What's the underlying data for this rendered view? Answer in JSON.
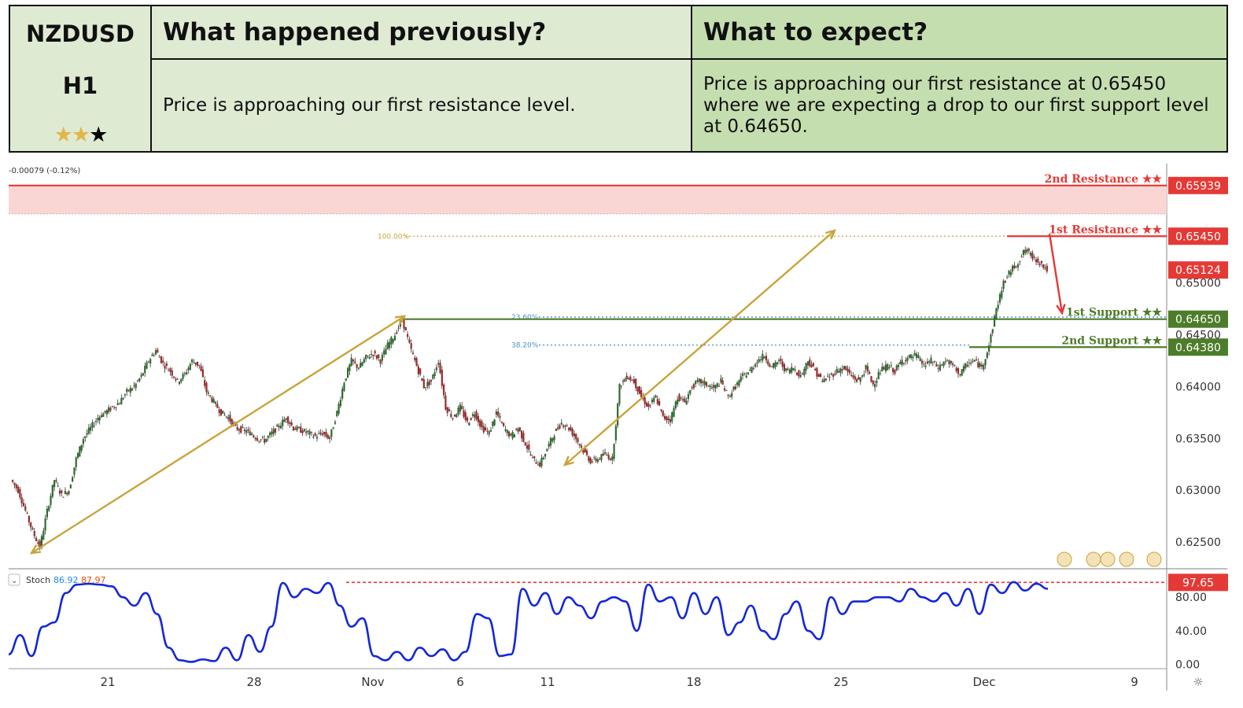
{
  "header": {
    "symbol": "NZDUSD",
    "timeframe": "H1",
    "rating": {
      "gold_stars": 2,
      "black_stars": 1
    },
    "prev_title": "What happened previously?",
    "prev_text": "Price is approaching our first resistance level.",
    "expect_title": "What to expect?",
    "expect_text": "Price is approaching our first resistance at 0.65450 where we are expecting a drop to our first support level at 0.64650."
  },
  "colors": {
    "resistance": "#e53935",
    "support": "#4d7c2a",
    "arrow": "#c9a43a",
    "stoch": "#1428d6",
    "bull": "#2e6b2e",
    "bear": "#9b2a2a"
  },
  "chart_data": [
    {
      "type": "line",
      "name": "price",
      "change_label": "-0.00079 (-0.12%)",
      "x_ticks": [
        "21",
        "28",
        "Nov",
        "6",
        "11",
        "18",
        "25",
        "Dec",
        "9"
      ],
      "y_ticks": [
        "0.62500",
        "0.63000",
        "0.63500",
        "0.64000",
        "0.64500",
        "0.65000"
      ],
      "y_range": [
        0.6225,
        0.6615
      ],
      "last_price": "0.65124",
      "levels": [
        {
          "label": "2nd Resistance ★★",
          "value": 0.65939,
          "tag": "0.65939",
          "kind": "resistance"
        },
        {
          "label": "1st Resistance ★★",
          "value": 0.6545,
          "tag": "0.65450",
          "kind": "resistance"
        },
        {
          "label": "1st Support ★★",
          "value": 0.6465,
          "tag": "0.64650",
          "kind": "support"
        },
        {
          "label": "2nd Support ★★",
          "value": 0.6438,
          "tag": "0.64380",
          "kind": "support"
        }
      ],
      "fib_labels": [
        "100.00%",
        "23.60%",
        "38.20%"
      ],
      "fib_values": [
        0.6545,
        0.6467,
        0.644
      ],
      "resistance_zone": [
        0.65665,
        0.65939
      ],
      "series": [
        {
          "values": [
            0.631,
            0.63,
            0.628,
            0.626,
            0.6245,
            0.628,
            0.631,
            0.6295,
            0.63,
            0.633,
            0.635,
            0.636,
            0.637,
            0.6375,
            0.638,
            0.6385,
            0.6395,
            0.64,
            0.641,
            0.6425,
            0.6435,
            0.6422,
            0.6415,
            0.6405,
            0.6412,
            0.6425,
            0.642,
            0.6395,
            0.6385,
            0.6375,
            0.637,
            0.636,
            0.6358,
            0.6355,
            0.635,
            0.6348,
            0.6355,
            0.6362,
            0.637,
            0.636,
            0.6358,
            0.6355,
            0.6352,
            0.6355,
            0.635,
            0.6375,
            0.6405,
            0.6425,
            0.6418,
            0.6428,
            0.6432,
            0.6425,
            0.644,
            0.645,
            0.6465,
            0.644,
            0.642,
            0.64,
            0.6405,
            0.6425,
            0.638,
            0.637,
            0.638,
            0.6365,
            0.6375,
            0.636,
            0.6355,
            0.6375,
            0.636,
            0.6352,
            0.636,
            0.6345,
            0.633,
            0.6325,
            0.634,
            0.6355,
            0.6365,
            0.636,
            0.635,
            0.6338,
            0.6328,
            0.633,
            0.6335,
            0.633,
            0.64,
            0.641,
            0.6405,
            0.639,
            0.638,
            0.639,
            0.637,
            0.6368,
            0.639,
            0.6385,
            0.64,
            0.6405,
            0.6402,
            0.6398,
            0.6405,
            0.639,
            0.64,
            0.641,
            0.6415,
            0.6425,
            0.643,
            0.6418,
            0.6425,
            0.6415,
            0.6418,
            0.641,
            0.6425,
            0.6415,
            0.6405,
            0.641,
            0.6415,
            0.6418,
            0.641,
            0.6405,
            0.6418,
            0.6402,
            0.6415,
            0.642,
            0.6415,
            0.6425,
            0.6428,
            0.643,
            0.642,
            0.6425,
            0.6418,
            0.6425,
            0.642,
            0.6412,
            0.6422,
            0.6425,
            0.6418,
            0.644,
            0.6475,
            0.65,
            0.6512,
            0.652,
            0.6532,
            0.6525,
            0.652,
            0.6512
          ]
        }
      ]
    },
    {
      "type": "line",
      "name": "Stoch",
      "legend": {
        "label": "Stoch",
        "k": "86.92",
        "d": "87.97"
      },
      "y_ticks": [
        "0.00",
        "40.00",
        "80.00"
      ],
      "y_range": [
        -5,
        112
      ],
      "overbought_level": 97.65,
      "overbought_tag": "97.65",
      "series": [
        {
          "name": "%K",
          "values": [
            12,
            35,
            10,
            45,
            50,
            85,
            95,
            96,
            95,
            93,
            80,
            70,
            85,
            60,
            20,
            5,
            3,
            6,
            4,
            20,
            5,
            35,
            15,
            45,
            97,
            80,
            90,
            85,
            97,
            70,
            45,
            55,
            10,
            5,
            15,
            5,
            20,
            10,
            18,
            5,
            15,
            60,
            55,
            10,
            12,
            90,
            70,
            85,
            60,
            80,
            70,
            55,
            75,
            80,
            75,
            40,
            95,
            75,
            80,
            55,
            85,
            60,
            80,
            35,
            50,
            70,
            40,
            30,
            60,
            75,
            40,
            30,
            80,
            60,
            75,
            75,
            80,
            80,
            75,
            90,
            80,
            75,
            85,
            70,
            90,
            60,
            95,
            85,
            98,
            88,
            96,
            90
          ]
        }
      ]
    }
  ]
}
